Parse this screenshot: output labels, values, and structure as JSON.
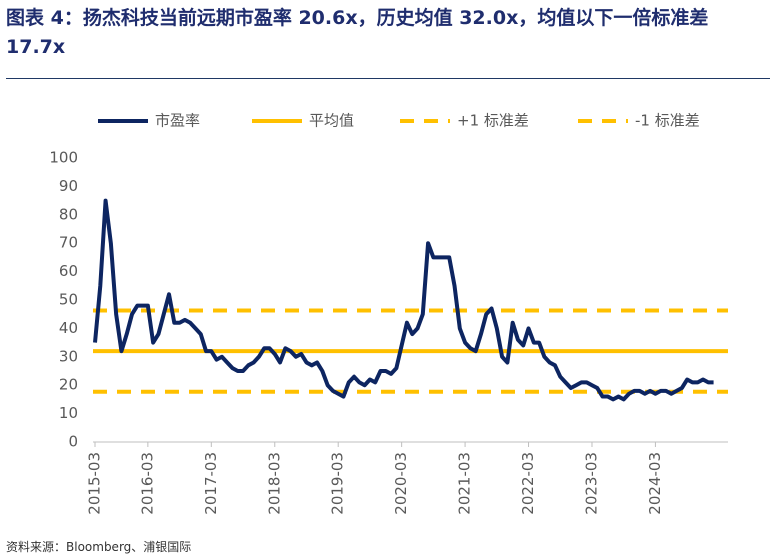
{
  "chart_data": {
    "type": "line",
    "title": "图表 4：扬杰科技当前远期市盈率 20.6x，历史均值 32.0x，均值以下一倍标准差 17.7x",
    "source": "资料来源：Bloomberg、浦银国际",
    "categories": [
      "2015-03",
      null,
      null,
      null,
      null,
      null,
      null,
      null,
      null,
      null,
      "2016-03",
      null,
      null,
      null,
      null,
      null,
      null,
      null,
      null,
      null,
      null,
      null,
      "2017-03",
      null,
      null,
      null,
      null,
      null,
      null,
      null,
      null,
      null,
      null,
      null,
      "2018-03",
      null,
      null,
      null,
      null,
      null,
      null,
      null,
      null,
      null,
      null,
      null,
      "2019-03",
      null,
      null,
      null,
      null,
      null,
      null,
      null,
      null,
      null,
      null,
      null,
      "2020-03",
      null,
      null,
      null,
      null,
      null,
      null,
      null,
      null,
      null,
      null,
      null,
      "2021-03",
      null,
      null,
      null,
      null,
      null,
      null,
      null,
      null,
      null,
      null,
      null,
      "2022-03",
      null,
      null,
      null,
      null,
      null,
      null,
      null,
      null,
      null,
      null,
      null,
      "2023-03",
      null,
      null,
      null,
      null,
      null,
      null,
      null,
      null,
      null,
      null,
      null,
      "2024-03",
      null,
      null,
      null,
      null,
      null,
      null,
      null,
      null,
      null,
      null,
      null
    ],
    "series": [
      {
        "name": "市盈率",
        "color": "#0d2561",
        "values": [
          35,
          55,
          85,
          70,
          45,
          32,
          38,
          45,
          48,
          48,
          48,
          35,
          38,
          45,
          52,
          42,
          42,
          43,
          42,
          40,
          38,
          32,
          32,
          29,
          30,
          28,
          26,
          25,
          25,
          27,
          28,
          30,
          33,
          33,
          31,
          28,
          33,
          32,
          30,
          31,
          28,
          27,
          28,
          25,
          20,
          18,
          17,
          16,
          21,
          23,
          21,
          20,
          22,
          21,
          25,
          25,
          24,
          26,
          34,
          42,
          38,
          40,
          45,
          70,
          65,
          65,
          65,
          65,
          55,
          40,
          35,
          33,
          32,
          38,
          45,
          47,
          40,
          30,
          28,
          42,
          36,
          34,
          40,
          35,
          35,
          30,
          28,
          27,
          23,
          21,
          19,
          20,
          21,
          21,
          20,
          19,
          16,
          16,
          15,
          16,
          15,
          17,
          18,
          18,
          17,
          18,
          17,
          18,
          18,
          17,
          18,
          19,
          22,
          21,
          21,
          22,
          21,
          21
        ]
      }
    ],
    "reference_lines": [
      {
        "name": "平均值",
        "value": 32.0,
        "color": "#ffc000",
        "style": "solid"
      },
      {
        "name": "+1 标准差",
        "value": 46.3,
        "color": "#ffc000",
        "style": "dashed"
      },
      {
        "name": "-1 标准差",
        "value": 17.7,
        "color": "#ffc000",
        "style": "dashed"
      }
    ],
    "ylim": [
      0,
      100
    ],
    "yticks": [
      0,
      10,
      20,
      30,
      40,
      50,
      60,
      70,
      80,
      90,
      100
    ],
    "grid": false,
    "legend": "top"
  }
}
